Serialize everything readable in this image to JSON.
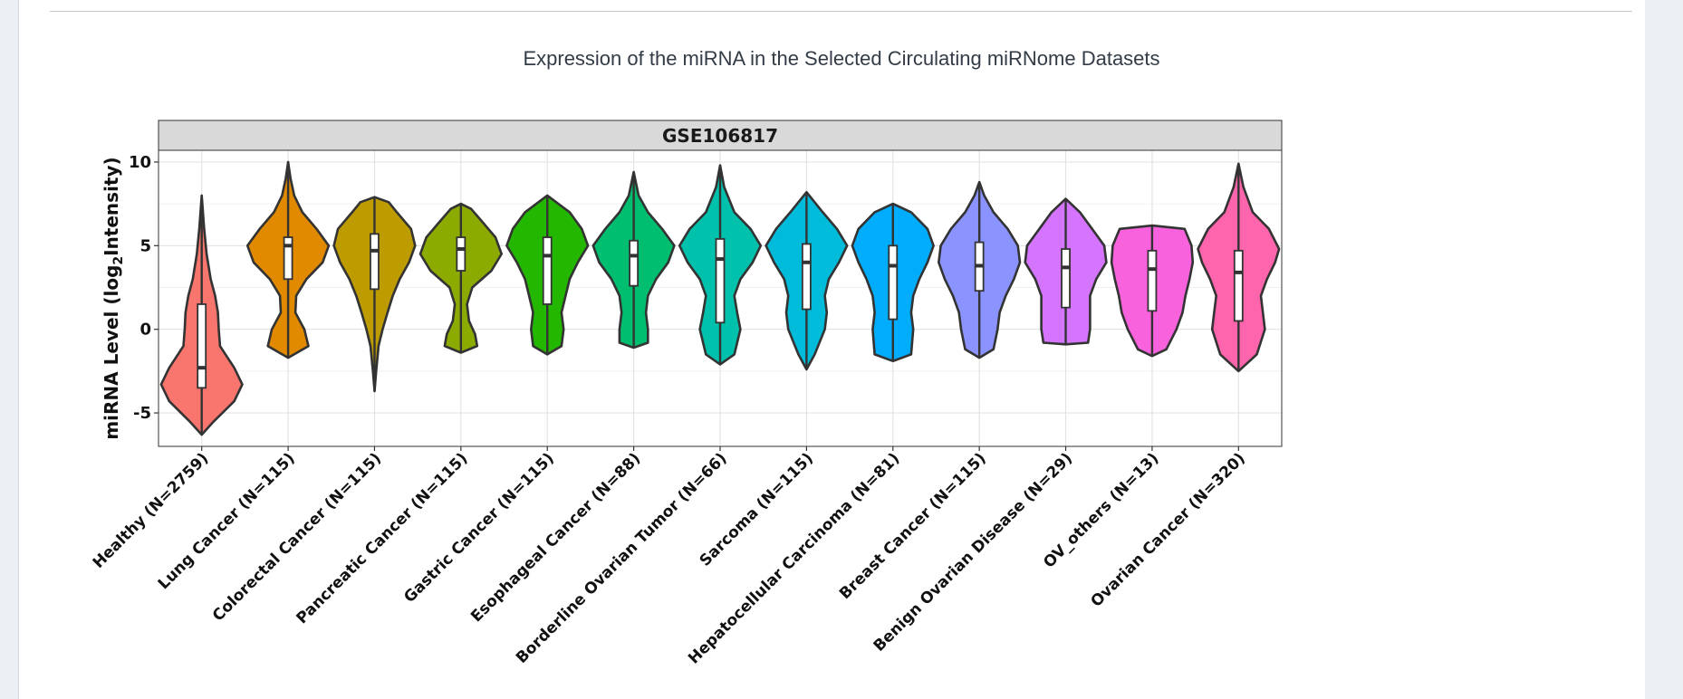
{
  "page": {
    "title": "Expression of the miRNA in the Selected Circulating miRNome Datasets"
  },
  "chart_data": {
    "type": "violin",
    "facet_title": "GSE106817",
    "ylabel_main": "miRNA Level (log",
    "ylabel_sub": "2",
    "ylabel_tail": "Intensity)",
    "xlabel": "",
    "ylim": [
      -7,
      10.7
    ],
    "yticks": [
      10,
      5,
      0,
      -5
    ],
    "ytick_labels": [
      "10",
      "5",
      "0",
      "-5"
    ],
    "grid": true,
    "legend": "none",
    "categories": [
      "Healthy (N=2759)",
      "Lung Cancer (N=115)",
      "Colorectal Cancer (N=115)",
      "Pancreatic Cancer (N=115)",
      "Gastric Cancer (N=115)",
      "Esophageal Cancer (N=88)",
      "Borderline Ovarian Tumor (N=66)",
      "Sarcoma (N=115)",
      "Hepatocellular Carcinoma (N=81)",
      "Breast Cancer (N=115)",
      "Benign Ovarian Disease (N=29)",
      "OV_others (N=13)",
      "Ovarian Cancer (N=320)"
    ],
    "colors": [
      "#F8766D",
      "#E18A00",
      "#BE9C00",
      "#8CAB00",
      "#24B700",
      "#00BE70",
      "#00C1AB",
      "#00BBDA",
      "#00ACFC",
      "#8B93FF",
      "#D575FE",
      "#F962DD",
      "#FF65AC"
    ],
    "series": [
      {
        "min": -6.3,
        "max": 8.0,
        "q1": -3.5,
        "median": -2.3,
        "q3": 1.5,
        "density": [
          [
            -6.3,
            0
          ],
          [
            -5.5,
            0.3
          ],
          [
            -4.3,
            0.8
          ],
          [
            -3.3,
            1
          ],
          [
            -2.3,
            0.8
          ],
          [
            -1,
            0.45
          ],
          [
            0,
            0.42
          ],
          [
            1,
            0.4
          ],
          [
            2,
            0.33
          ],
          [
            3,
            0.22
          ],
          [
            4.5,
            0.12
          ],
          [
            6,
            0.06
          ],
          [
            8,
            0
          ]
        ]
      },
      {
        "min": -1.7,
        "max": 10.0,
        "q1": 3.0,
        "median": 5.0,
        "q3": 5.5,
        "density": [
          [
            -1.7,
            0
          ],
          [
            -1,
            0.5
          ],
          [
            0,
            0.4
          ],
          [
            1,
            0.18
          ],
          [
            2,
            0.2
          ],
          [
            3,
            0.45
          ],
          [
            4,
            0.85
          ],
          [
            5,
            1
          ],
          [
            6,
            0.7
          ],
          [
            7,
            0.35
          ],
          [
            8,
            0.15
          ],
          [
            9,
            0.06
          ],
          [
            10,
            0
          ]
        ]
      },
      {
        "min": -3.7,
        "max": 7.9,
        "q1": 2.4,
        "median": 4.7,
        "q3": 5.7,
        "density": [
          [
            -3.7,
            0
          ],
          [
            -2.5,
            0.04
          ],
          [
            -1,
            0.1
          ],
          [
            0,
            0.2
          ],
          [
            1,
            0.32
          ],
          [
            2,
            0.45
          ],
          [
            3,
            0.62
          ],
          [
            4,
            0.85
          ],
          [
            5,
            1
          ],
          [
            6,
            0.9
          ],
          [
            7,
            0.55
          ],
          [
            7.6,
            0.35
          ],
          [
            7.9,
            0
          ]
        ]
      },
      {
        "min": -1.4,
        "max": 7.5,
        "q1": 3.5,
        "median": 4.8,
        "q3": 5.5,
        "density": [
          [
            -1.4,
            0
          ],
          [
            -1,
            0.4
          ],
          [
            -0.3,
            0.35
          ],
          [
            0.5,
            0.2
          ],
          [
            1.5,
            0.15
          ],
          [
            2.5,
            0.28
          ],
          [
            3.5,
            0.75
          ],
          [
            4.5,
            1
          ],
          [
            5.5,
            0.85
          ],
          [
            6.5,
            0.5
          ],
          [
            7.2,
            0.25
          ],
          [
            7.5,
            0
          ]
        ]
      },
      {
        "min": -1.5,
        "max": 8.0,
        "q1": 1.5,
        "median": 4.4,
        "q3": 5.5,
        "density": [
          [
            -1.5,
            0
          ],
          [
            -1,
            0.35
          ],
          [
            0,
            0.4
          ],
          [
            1,
            0.35
          ],
          [
            2,
            0.45
          ],
          [
            3,
            0.55
          ],
          [
            4,
            0.75
          ],
          [
            5,
            1
          ],
          [
            6,
            0.85
          ],
          [
            7,
            0.55
          ],
          [
            8,
            0
          ]
        ]
      },
      {
        "min": -1.1,
        "max": 9.4,
        "q1": 2.6,
        "median": 4.4,
        "q3": 5.3,
        "density": [
          [
            -1.1,
            0
          ],
          [
            -0.8,
            0.35
          ],
          [
            0,
            0.35
          ],
          [
            1,
            0.3
          ],
          [
            2,
            0.35
          ],
          [
            3,
            0.55
          ],
          [
            4,
            0.85
          ],
          [
            5,
            1
          ],
          [
            6,
            0.7
          ],
          [
            7,
            0.35
          ],
          [
            8,
            0.12
          ],
          [
            9.4,
            0
          ]
        ]
      },
      {
        "min": -2.1,
        "max": 9.8,
        "q1": 0.4,
        "median": 4.2,
        "q3": 5.4,
        "density": [
          [
            -2.1,
            0
          ],
          [
            -1.5,
            0.35
          ],
          [
            0,
            0.5
          ],
          [
            1,
            0.42
          ],
          [
            2,
            0.35
          ],
          [
            3,
            0.5
          ],
          [
            4,
            0.8
          ],
          [
            5,
            1
          ],
          [
            6,
            0.75
          ],
          [
            7,
            0.35
          ],
          [
            8.5,
            0.1
          ],
          [
            9.8,
            0
          ]
        ]
      },
      {
        "min": -2.4,
        "max": 8.2,
        "q1": 1.2,
        "median": 4.0,
        "q3": 5.1,
        "density": [
          [
            -2.4,
            0
          ],
          [
            -1.5,
            0.2
          ],
          [
            0,
            0.45
          ],
          [
            1,
            0.5
          ],
          [
            2,
            0.45
          ],
          [
            3,
            0.55
          ],
          [
            4,
            0.8
          ],
          [
            5,
            1
          ],
          [
            6,
            0.75
          ],
          [
            7,
            0.4
          ],
          [
            8.2,
            0
          ]
        ]
      },
      {
        "min": -1.9,
        "max": 7.5,
        "q1": 0.6,
        "median": 3.8,
        "q3": 5.0,
        "density": [
          [
            -1.9,
            0
          ],
          [
            -1.5,
            0.45
          ],
          [
            0,
            0.5
          ],
          [
            1,
            0.45
          ],
          [
            2,
            0.5
          ],
          [
            3,
            0.65
          ],
          [
            4,
            0.85
          ],
          [
            5,
            1
          ],
          [
            6,
            0.85
          ],
          [
            7,
            0.45
          ],
          [
            7.5,
            0
          ]
        ]
      },
      {
        "min": -1.7,
        "max": 8.8,
        "q1": 2.3,
        "median": 3.8,
        "q3": 5.2,
        "density": [
          [
            -1.7,
            0
          ],
          [
            -1.2,
            0.35
          ],
          [
            0,
            0.45
          ],
          [
            1,
            0.5
          ],
          [
            2,
            0.65
          ],
          [
            3,
            0.85
          ],
          [
            4,
            1
          ],
          [
            5,
            0.95
          ],
          [
            6,
            0.7
          ],
          [
            7,
            0.35
          ],
          [
            8,
            0.12
          ],
          [
            8.8,
            0
          ]
        ]
      },
      {
        "min": -0.9,
        "max": 7.8,
        "q1": 1.3,
        "median": 3.7,
        "q3": 4.8,
        "density": [
          [
            -0.9,
            0
          ],
          [
            -0.8,
            0.55
          ],
          [
            0,
            0.6
          ],
          [
            1,
            0.6
          ],
          [
            2,
            0.6
          ],
          [
            3,
            0.75
          ],
          [
            4,
            1
          ],
          [
            5,
            0.95
          ],
          [
            6,
            0.65
          ],
          [
            7,
            0.35
          ],
          [
            7.8,
            0
          ]
        ]
      },
      {
        "min": -1.6,
        "max": 6.2,
        "q1": 1.1,
        "median": 3.6,
        "q3": 4.7,
        "density": [
          [
            -1.6,
            0
          ],
          [
            -1.2,
            0.35
          ],
          [
            0,
            0.6
          ],
          [
            1,
            0.75
          ],
          [
            2,
            0.82
          ],
          [
            3,
            0.92
          ],
          [
            4,
            1
          ],
          [
            5,
            0.97
          ],
          [
            6,
            0.8
          ],
          [
            6.2,
            0
          ]
        ]
      },
      {
        "min": -2.5,
        "max": 9.9,
        "q1": 0.5,
        "median": 3.4,
        "q3": 4.7,
        "density": [
          [
            -2.5,
            0
          ],
          [
            -1.5,
            0.45
          ],
          [
            0,
            0.65
          ],
          [
            1,
            0.6
          ],
          [
            2,
            0.55
          ],
          [
            3,
            0.7
          ],
          [
            4,
            0.9
          ],
          [
            4.8,
            1
          ],
          [
            6,
            0.75
          ],
          [
            7,
            0.35
          ],
          [
            8.5,
            0.12
          ],
          [
            9.9,
            0
          ]
        ]
      }
    ]
  }
}
